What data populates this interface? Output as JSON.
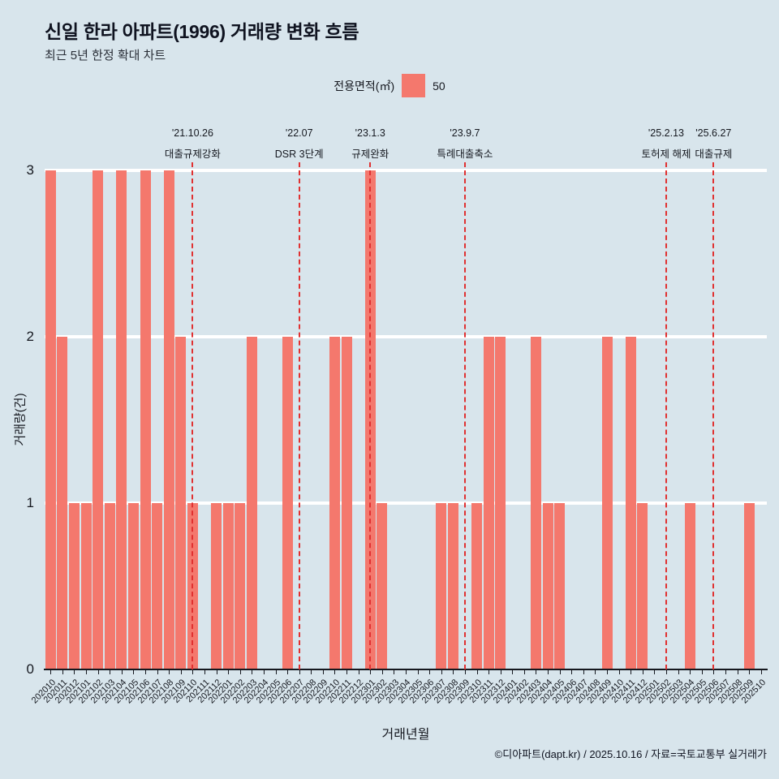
{
  "page": {
    "title": "신일 한라 아파트(1996) 거래량 변화 흐름",
    "subtitle": "최근 5년 한정 확대 차트",
    "footer": "©디아파트(dapt.kr) / 2025.10.16 / 자료=국토교통부 실거래가"
  },
  "legend": {
    "label": "전용면적(㎡)",
    "value": "50",
    "swatch_color": "#f4786d"
  },
  "chart_data": {
    "type": "bar",
    "title": "신일 한라 아파트(1996) 거래량 변화 흐름",
    "subtitle": "최근 5년 한정 확대 차트",
    "xlabel": "거래년월",
    "ylabel": "거래량(건)",
    "ylim": [
      0,
      3
    ],
    "yticks": [
      0,
      1,
      2,
      3
    ],
    "grid": "horizontal-white-lines",
    "legend_position": "top-center",
    "bar_color": "#f4786d",
    "annotation_line_color": "#e03131",
    "categories": [
      "202010",
      "202011",
      "202012",
      "202101",
      "202102",
      "202103",
      "202104",
      "202105",
      "202106",
      "202107",
      "202108",
      "202109",
      "202110",
      "202111",
      "202112",
      "202201",
      "202202",
      "202203",
      "202204",
      "202205",
      "202206",
      "202207",
      "202208",
      "202209",
      "202210",
      "202211",
      "202212",
      "202301",
      "202302",
      "202303",
      "202304",
      "202305",
      "202306",
      "202307",
      "202308",
      "202309",
      "202310",
      "202311",
      "202312",
      "202401",
      "202402",
      "202403",
      "202404",
      "202405",
      "202406",
      "202407",
      "202408",
      "202409",
      "202410",
      "202411",
      "202412",
      "202501",
      "202502",
      "202503",
      "202504",
      "202505",
      "202506",
      "202507",
      "202508",
      "202509",
      "202510"
    ],
    "values": [
      3,
      2,
      1,
      1,
      3,
      1,
      3,
      1,
      3,
      1,
      3,
      2,
      1,
      0,
      1,
      1,
      1,
      2,
      0,
      0,
      2,
      0,
      0,
      0,
      2,
      2,
      0,
      3,
      1,
      0,
      0,
      0,
      0,
      1,
      1,
      0,
      1,
      2,
      2,
      0,
      0,
      2,
      1,
      1,
      0,
      0,
      0,
      2,
      0,
      2,
      1,
      0,
      0,
      0,
      1,
      0,
      0,
      0,
      0,
      1,
      0
    ],
    "annotations": [
      {
        "month": "202110",
        "line1": "'21.10.26",
        "line2": "대출규제강화"
      },
      {
        "month": "202207",
        "line1": "'22.07",
        "line2": "DSR 3단계"
      },
      {
        "month": "202301",
        "line1": "'23.1.3",
        "line2": "규제완화"
      },
      {
        "month": "202309",
        "line1": "'23.9.7",
        "line2": "특례대출축소"
      },
      {
        "month": "202502",
        "line1": "'25.2.13",
        "line2": "토허제 해제"
      },
      {
        "month": "202506",
        "line1": "'25.6.27",
        "line2": "대출규제"
      }
    ]
  }
}
